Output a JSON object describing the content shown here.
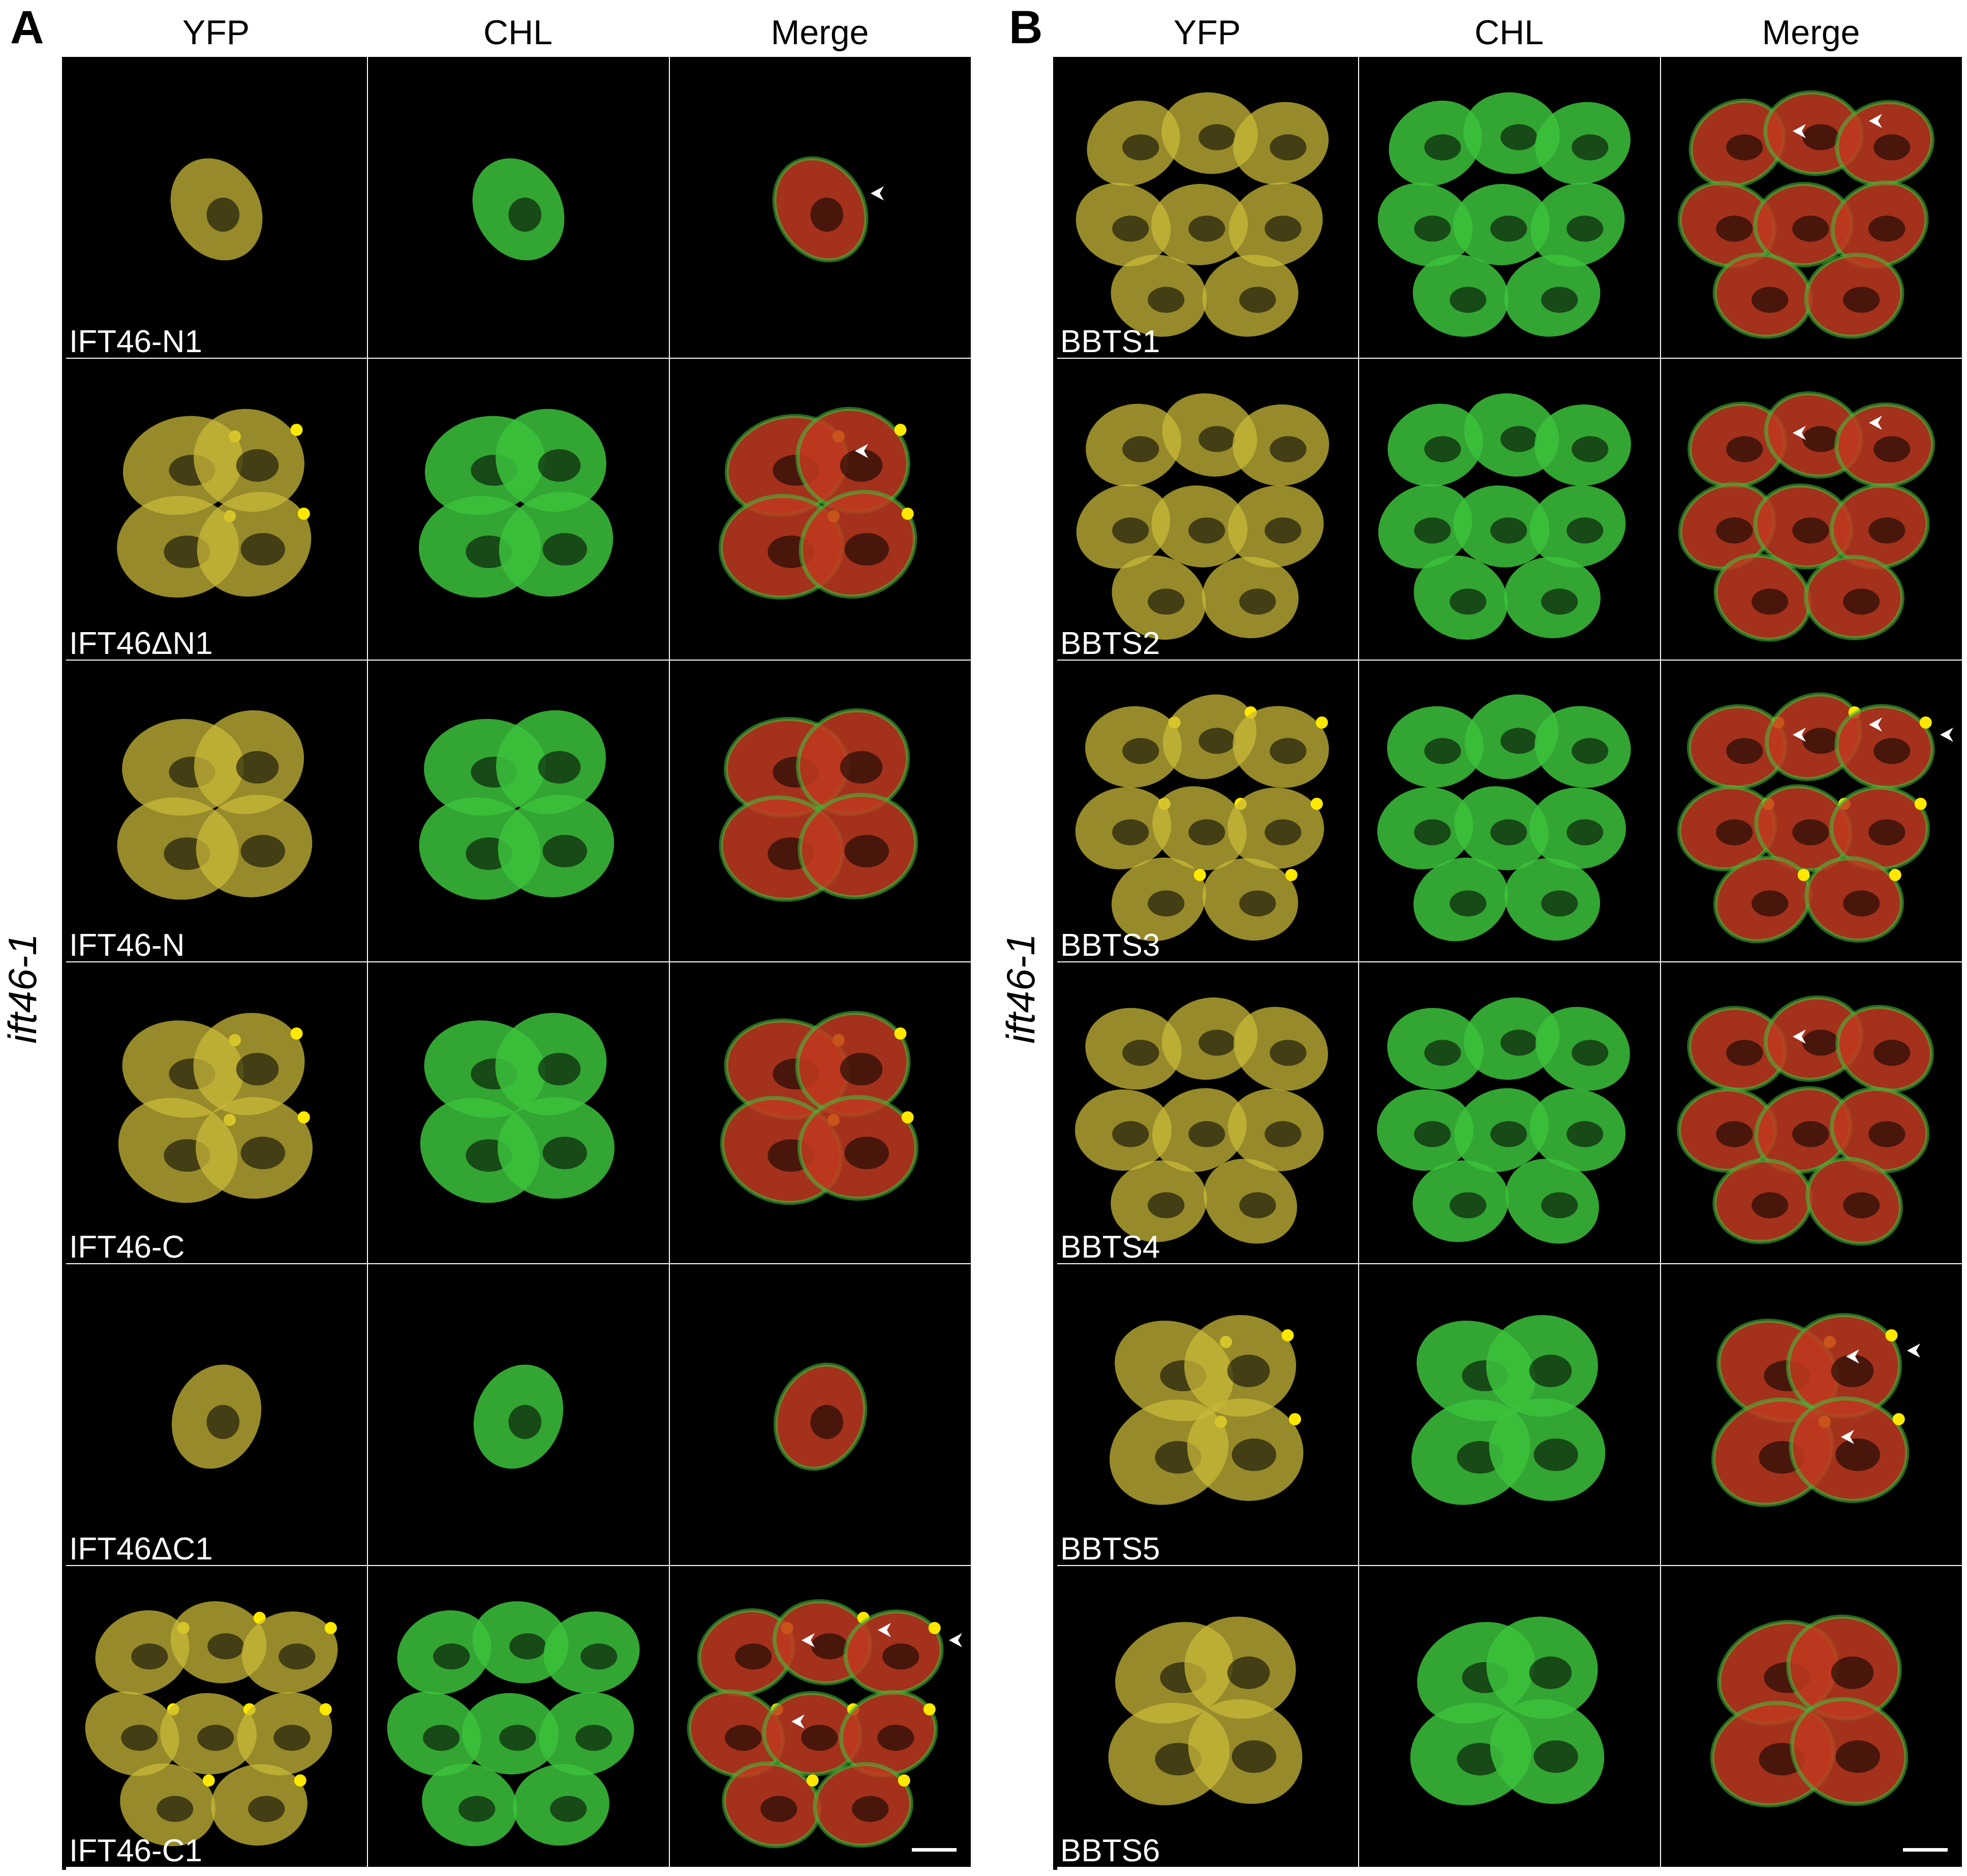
{
  "colors": {
    "background": "#000000",
    "yfp": "#c8b83a",
    "chl": "#3cc23c",
    "merge": "#c03a20",
    "spot": "#ffe800",
    "arrow": "#ffffff",
    "separator": "#ffffff"
  },
  "panels": [
    {
      "letter": "A",
      "side_label": "ift46-1",
      "columns": [
        "YFP",
        "CHL",
        "Merge"
      ],
      "rows": [
        {
          "label": "IFT46-N1",
          "cells": 1,
          "spots": false,
          "arrows": 1
        },
        {
          "label": "IFT46ΔN1",
          "cells": 4,
          "spots": true,
          "arrows": 1
        },
        {
          "label": "IFT46-N",
          "cells": 4,
          "spots": false,
          "arrows": 0
        },
        {
          "label": "IFT46-C",
          "cells": 4,
          "spots": true,
          "arrows": 0
        },
        {
          "label": "IFT46ΔC1",
          "cells": 1,
          "spots": false,
          "arrows": 0
        },
        {
          "label": "IFT46-C1",
          "cells": 8,
          "spots": true,
          "arrows": 4
        }
      ]
    },
    {
      "letter": "B",
      "side_label": "ift46-1",
      "columns": [
        "YFP",
        "CHL",
        "Merge"
      ],
      "rows": [
        {
          "label": "BBTS1",
          "cells": 8,
          "spots": false,
          "arrows": 2
        },
        {
          "label": "BBTS2",
          "cells": 8,
          "spots": false,
          "arrows": 2
        },
        {
          "label": "BBTS3",
          "cells": 8,
          "spots": true,
          "arrows": 3
        },
        {
          "label": "BBTS4",
          "cells": 8,
          "spots": false,
          "arrows": 1
        },
        {
          "label": "BBTS5",
          "cells": 4,
          "spots": true,
          "arrows": 3
        },
        {
          "label": "BBTS6",
          "cells": 4,
          "spots": false,
          "arrows": 0
        }
      ]
    }
  ]
}
